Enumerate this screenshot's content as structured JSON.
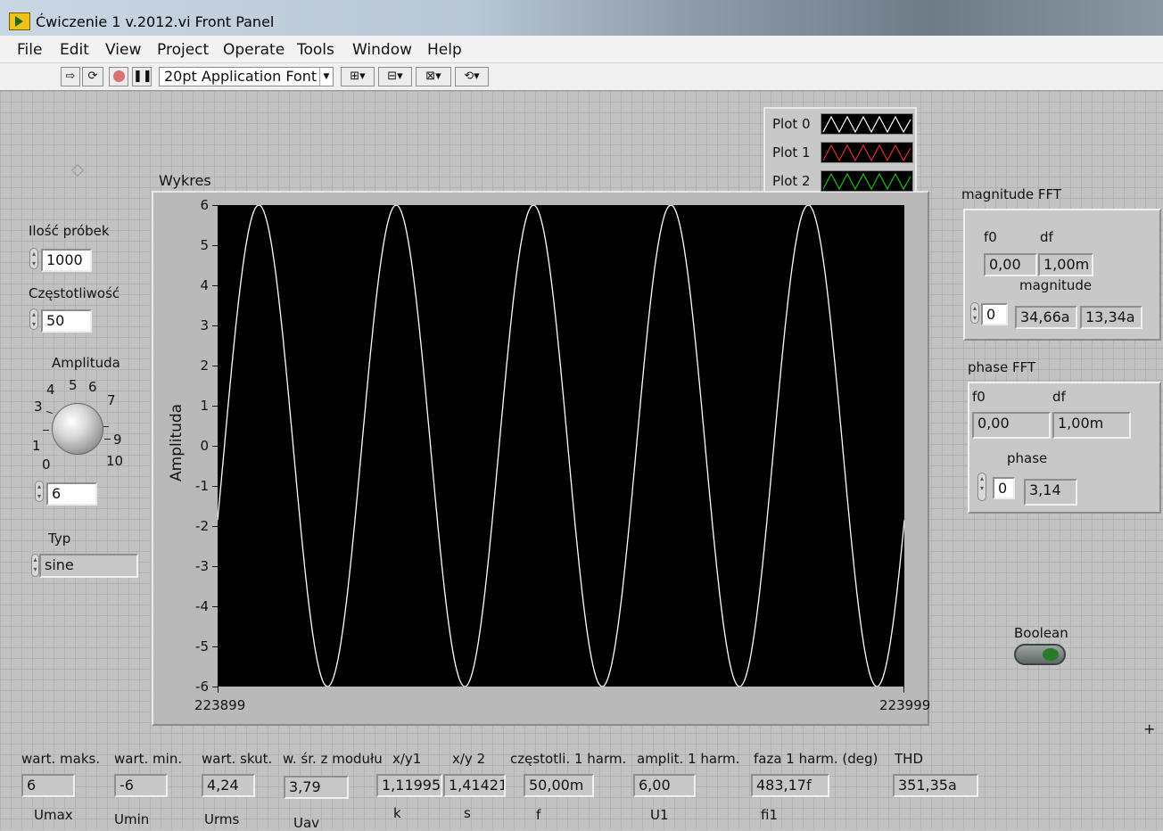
{
  "window": {
    "title": "Ćwiczenie 1 v.2012.vi Front Panel"
  },
  "menu": [
    "File",
    "Edit",
    "View",
    "Project",
    "Operate",
    "Tools",
    "Window",
    "Help"
  ],
  "toolbar": {
    "font": "20pt Application Font"
  },
  "colors": {
    "plot0": "#ffffff",
    "plot1": "#e03030",
    "plot2": "#20c020",
    "plot_bg": "#000000"
  },
  "controls": {
    "samples": {
      "label": "Ilość próbek",
      "value": "1000"
    },
    "frequency": {
      "label": "Częstotliwość",
      "value": "50"
    },
    "amplitude": {
      "label": "Amplituda",
      "value": "6",
      "scale": [
        "0",
        "1",
        "3",
        "4",
        "5",
        "6",
        "7",
        "9",
        "10"
      ]
    },
    "type": {
      "label": "Typ",
      "value": "sine"
    }
  },
  "graph": {
    "label": "Wykres",
    "ylabel": "Amplituda",
    "x_start": "223899",
    "x_end": "223999",
    "yticks": [
      "6",
      "5",
      "4",
      "3",
      "2",
      "1",
      "0",
      "-1",
      "-2",
      "-3",
      "-4",
      "-5",
      "-6"
    ],
    "legend": [
      "Plot 0",
      "Plot 1",
      "Plot 2"
    ]
  },
  "chart_data": {
    "type": "line",
    "title": "Wykres",
    "xlabel": "",
    "ylabel": "Amplituda",
    "xlim": [
      223899,
      223999
    ],
    "ylim": [
      -6,
      6
    ],
    "grid": false,
    "legend": "top-right",
    "series": [
      {
        "name": "Plot 0",
        "function": "6*sin(2*pi*50*t)",
        "cycles_visible": 5,
        "value_at_start": -1.85,
        "value_at_end": -1.85
      }
    ]
  },
  "magnitude_fft": {
    "label": "magnitude FFT",
    "f0_label": "f0",
    "df_label": "df",
    "f0": "0,00",
    "df": "1,00m",
    "array_label": "magnitude",
    "index": "0",
    "values": [
      "34,66a",
      "13,34a"
    ]
  },
  "phase_fft": {
    "label": "phase FFT",
    "f0_label": "f0",
    "df_label": "df",
    "f0": "0,00",
    "df": "1,00m",
    "array_label": "phase",
    "index": "0",
    "values": [
      "3,14"
    ]
  },
  "boolean": {
    "label": "Boolean"
  },
  "bottom": [
    {
      "label": "wart. maks.",
      "value": "6",
      "sub": "Umax"
    },
    {
      "label": "wart. min.",
      "value": "-6",
      "sub": "Umin"
    },
    {
      "label": "wart. skut.",
      "value": "4,24",
      "sub": "Urms"
    },
    {
      "label": "w. śr. z modułu",
      "value": "3,79",
      "sub": "Uav"
    },
    {
      "label": "x/y1",
      "value": "1,11995",
      "sub": "k"
    },
    {
      "label": "x/y 2",
      "value": "1,41421",
      "sub": "s"
    },
    {
      "label": "częstotli. 1 harm.",
      "value": "50,00m",
      "sub": "f"
    },
    {
      "label": "amplit. 1 harm.",
      "value": "6,00",
      "sub": "U1"
    },
    {
      "label": "faza 1 harm. (deg)",
      "value": "483,17f",
      "sub": "fi1"
    },
    {
      "label": "THD",
      "value": "351,35a",
      "sub": ""
    }
  ]
}
